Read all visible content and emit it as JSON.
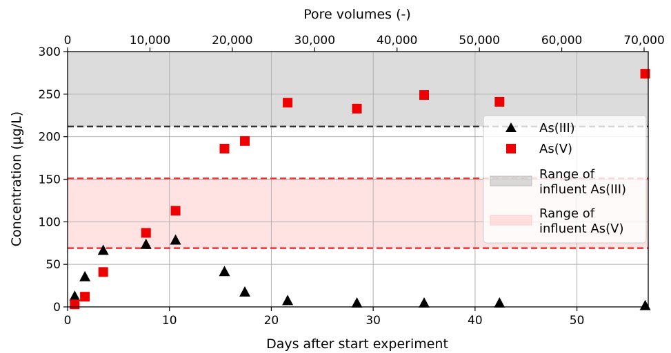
{
  "chart_data": {
    "type": "scatter",
    "title": "",
    "xlabel": "Days after start experiment",
    "ylabel": "Concentration (µg/L)",
    "x2label": "Pore volumes (-)",
    "xlim": [
      0,
      57
    ],
    "ylim": [
      0,
      300
    ],
    "x2lim": [
      0,
      70500
    ],
    "grid": true,
    "legend_position": "right",
    "x_ticks": [
      0,
      10,
      20,
      30,
      40,
      50
    ],
    "y_ticks": [
      0,
      50,
      100,
      150,
      200,
      250,
      300
    ],
    "x2_ticks": [
      0,
      10000,
      20000,
      30000,
      40000,
      50000,
      60000,
      70000
    ],
    "x_tick_labels": [
      "0",
      "10",
      "20",
      "30",
      "40",
      "50"
    ],
    "y_tick_labels": [
      "0",
      "50",
      "100",
      "150",
      "200",
      "250",
      "300"
    ],
    "x2_tick_labels": [
      "0",
      "10,000",
      "20,000",
      "30,000",
      "40,000",
      "50,000",
      "60,000",
      "70,000"
    ],
    "series": [
      {
        "name": "As(III)",
        "marker": "triangle",
        "color": "#000000",
        "x": [
          0.7,
          1.7,
          3.5,
          7.7,
          10.6,
          15.4,
          17.4,
          21.6,
          28.4,
          35.0,
          42.4,
          56.7
        ],
        "y": [
          12,
          35,
          66,
          73,
          78,
          41,
          17,
          7,
          4,
          4,
          4,
          1
        ]
      },
      {
        "name": "As(V)",
        "marker": "square",
        "color": "#ee0000",
        "x": [
          0.7,
          1.7,
          3.5,
          7.7,
          10.6,
          15.4,
          17.4,
          21.6,
          28.4,
          35.0,
          42.4,
          56.7
        ],
        "y": [
          3,
          12,
          41,
          87,
          113,
          186,
          195,
          240,
          233,
          249,
          241,
          274
        ]
      }
    ],
    "bands": [
      {
        "name": "Range of influent As(III)",
        "lower": 212,
        "upper": 300,
        "color": "#bfbfbf",
        "line_color": "#333333"
      },
      {
        "name": "Range of influent As(V)",
        "lower": 69,
        "upper": 151,
        "color": "#ffcccc",
        "line_color": "#ee3333"
      }
    ],
    "legend": [
      "As(III)",
      "As(V)",
      "Range of influent As(III)",
      "Range of influent As(V)"
    ]
  }
}
